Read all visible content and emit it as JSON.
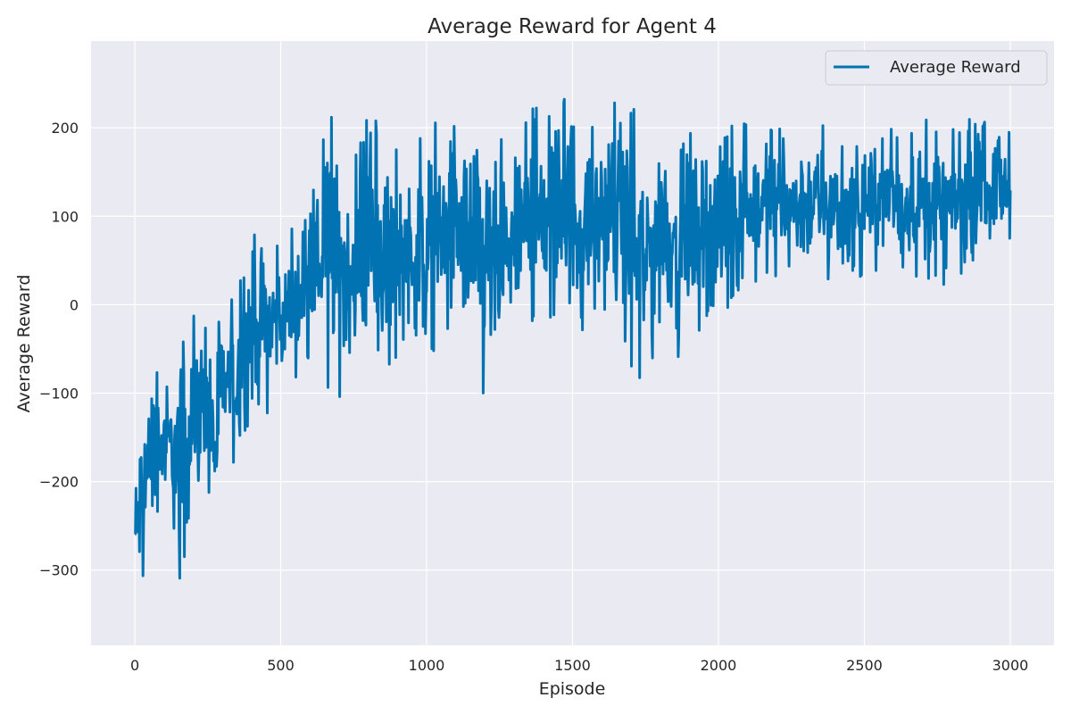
{
  "chart_data": {
    "type": "line",
    "title": "Average Reward for Agent 4",
    "xlabel": "Episode",
    "ylabel": "Average Reward",
    "xlim": [
      -150,
      3150
    ],
    "ylim": [
      -385,
      298
    ],
    "xticks": [
      0,
      500,
      1000,
      1500,
      2000,
      2500,
      3000
    ],
    "yticks": [
      -300,
      -200,
      -100,
      0,
      100,
      200
    ],
    "grid": true,
    "legend_position": "top-right",
    "colors": {
      "series": "#0173b2",
      "plot_bg": "#eaeaf2",
      "grid": "#ffffff"
    },
    "series": [
      {
        "name": "Average Reward",
        "note_x": "one point per episode, episodes 0-3000",
        "x_start": 0,
        "x_end": 3000,
        "envelope": [
          {
            "x": 0,
            "min": -355,
            "max": -175
          },
          {
            "x": 25,
            "min": -335,
            "max": -90
          },
          {
            "x": 50,
            "min": -270,
            "max": -65
          },
          {
            "x": 100,
            "min": -245,
            "max": -65
          },
          {
            "x": 150,
            "min": -315,
            "max": -35
          },
          {
            "x": 200,
            "min": -250,
            "max": -10
          },
          {
            "x": 250,
            "min": -210,
            "max": -5
          },
          {
            "x": 275,
            "min": -320,
            "max": 0
          },
          {
            "x": 300,
            "min": -185,
            "max": 5
          },
          {
            "x": 350,
            "min": -190,
            "max": 15
          },
          {
            "x": 400,
            "min": -120,
            "max": 85
          },
          {
            "x": 450,
            "min": -125,
            "max": 75
          },
          {
            "x": 500,
            "min": -100,
            "max": 80
          },
          {
            "x": 550,
            "min": -100,
            "max": 90
          },
          {
            "x": 600,
            "min": -60,
            "max": 100
          },
          {
            "x": 650,
            "min": -95,
            "max": 225
          },
          {
            "x": 700,
            "min": -130,
            "max": 210
          },
          {
            "x": 750,
            "min": -80,
            "max": 160
          },
          {
            "x": 800,
            "min": -65,
            "max": 220
          },
          {
            "x": 850,
            "min": -85,
            "max": 200
          },
          {
            "x": 900,
            "min": -60,
            "max": 190
          },
          {
            "x": 950,
            "min": -70,
            "max": 180
          },
          {
            "x": 1000,
            "min": -95,
            "max": 215
          },
          {
            "x": 1050,
            "min": -45,
            "max": 200
          },
          {
            "x": 1100,
            "min": -60,
            "max": 210
          },
          {
            "x": 1150,
            "min": -75,
            "max": 235
          },
          {
            "x": 1200,
            "min": -130,
            "max": 215
          },
          {
            "x": 1250,
            "min": -100,
            "max": 190
          },
          {
            "x": 1300,
            "min": -50,
            "max": 185
          },
          {
            "x": 1350,
            "min": -35,
            "max": 240
          },
          {
            "x": 1400,
            "min": -30,
            "max": 230
          },
          {
            "x": 1450,
            "min": -30,
            "max": 248
          },
          {
            "x": 1500,
            "min": -60,
            "max": 270
          },
          {
            "x": 1550,
            "min": -20,
            "max": 195
          },
          {
            "x": 1600,
            "min": -15,
            "max": 215
          },
          {
            "x": 1650,
            "min": -30,
            "max": 230
          },
          {
            "x": 1700,
            "min": -100,
            "max": 225
          },
          {
            "x": 1750,
            "min": -110,
            "max": 205
          },
          {
            "x": 1800,
            "min": -40,
            "max": 235
          },
          {
            "x": 1850,
            "min": -60,
            "max": 195
          },
          {
            "x": 1900,
            "min": -55,
            "max": 205
          },
          {
            "x": 1950,
            "min": -25,
            "max": 210
          },
          {
            "x": 2000,
            "min": -45,
            "max": 215
          },
          {
            "x": 2050,
            "min": 0,
            "max": 205
          },
          {
            "x": 2100,
            "min": 30,
            "max": 210
          },
          {
            "x": 2150,
            "min": 20,
            "max": 210
          },
          {
            "x": 2200,
            "min": 25,
            "max": 205
          },
          {
            "x": 2250,
            "min": 15,
            "max": 200
          },
          {
            "x": 2300,
            "min": 20,
            "max": 215
          },
          {
            "x": 2350,
            "min": 15,
            "max": 210
          },
          {
            "x": 2400,
            "min": 20,
            "max": 200
          },
          {
            "x": 2450,
            "min": 15,
            "max": 190
          },
          {
            "x": 2500,
            "min": 30,
            "max": 205
          },
          {
            "x": 2550,
            "min": 35,
            "max": 200
          },
          {
            "x": 2600,
            "min": 30,
            "max": 205
          },
          {
            "x": 2650,
            "min": 35,
            "max": 200
          },
          {
            "x": 2700,
            "min": 25,
            "max": 210
          },
          {
            "x": 2750,
            "min": 15,
            "max": 215
          },
          {
            "x": 2800,
            "min": 20,
            "max": 205
          },
          {
            "x": 2850,
            "min": 30,
            "max": 210
          },
          {
            "x": 2900,
            "min": 45,
            "max": 215
          },
          {
            "x": 2950,
            "min": 55,
            "max": 200
          },
          {
            "x": 3000,
            "min": 75,
            "max": 195
          }
        ]
      }
    ]
  }
}
